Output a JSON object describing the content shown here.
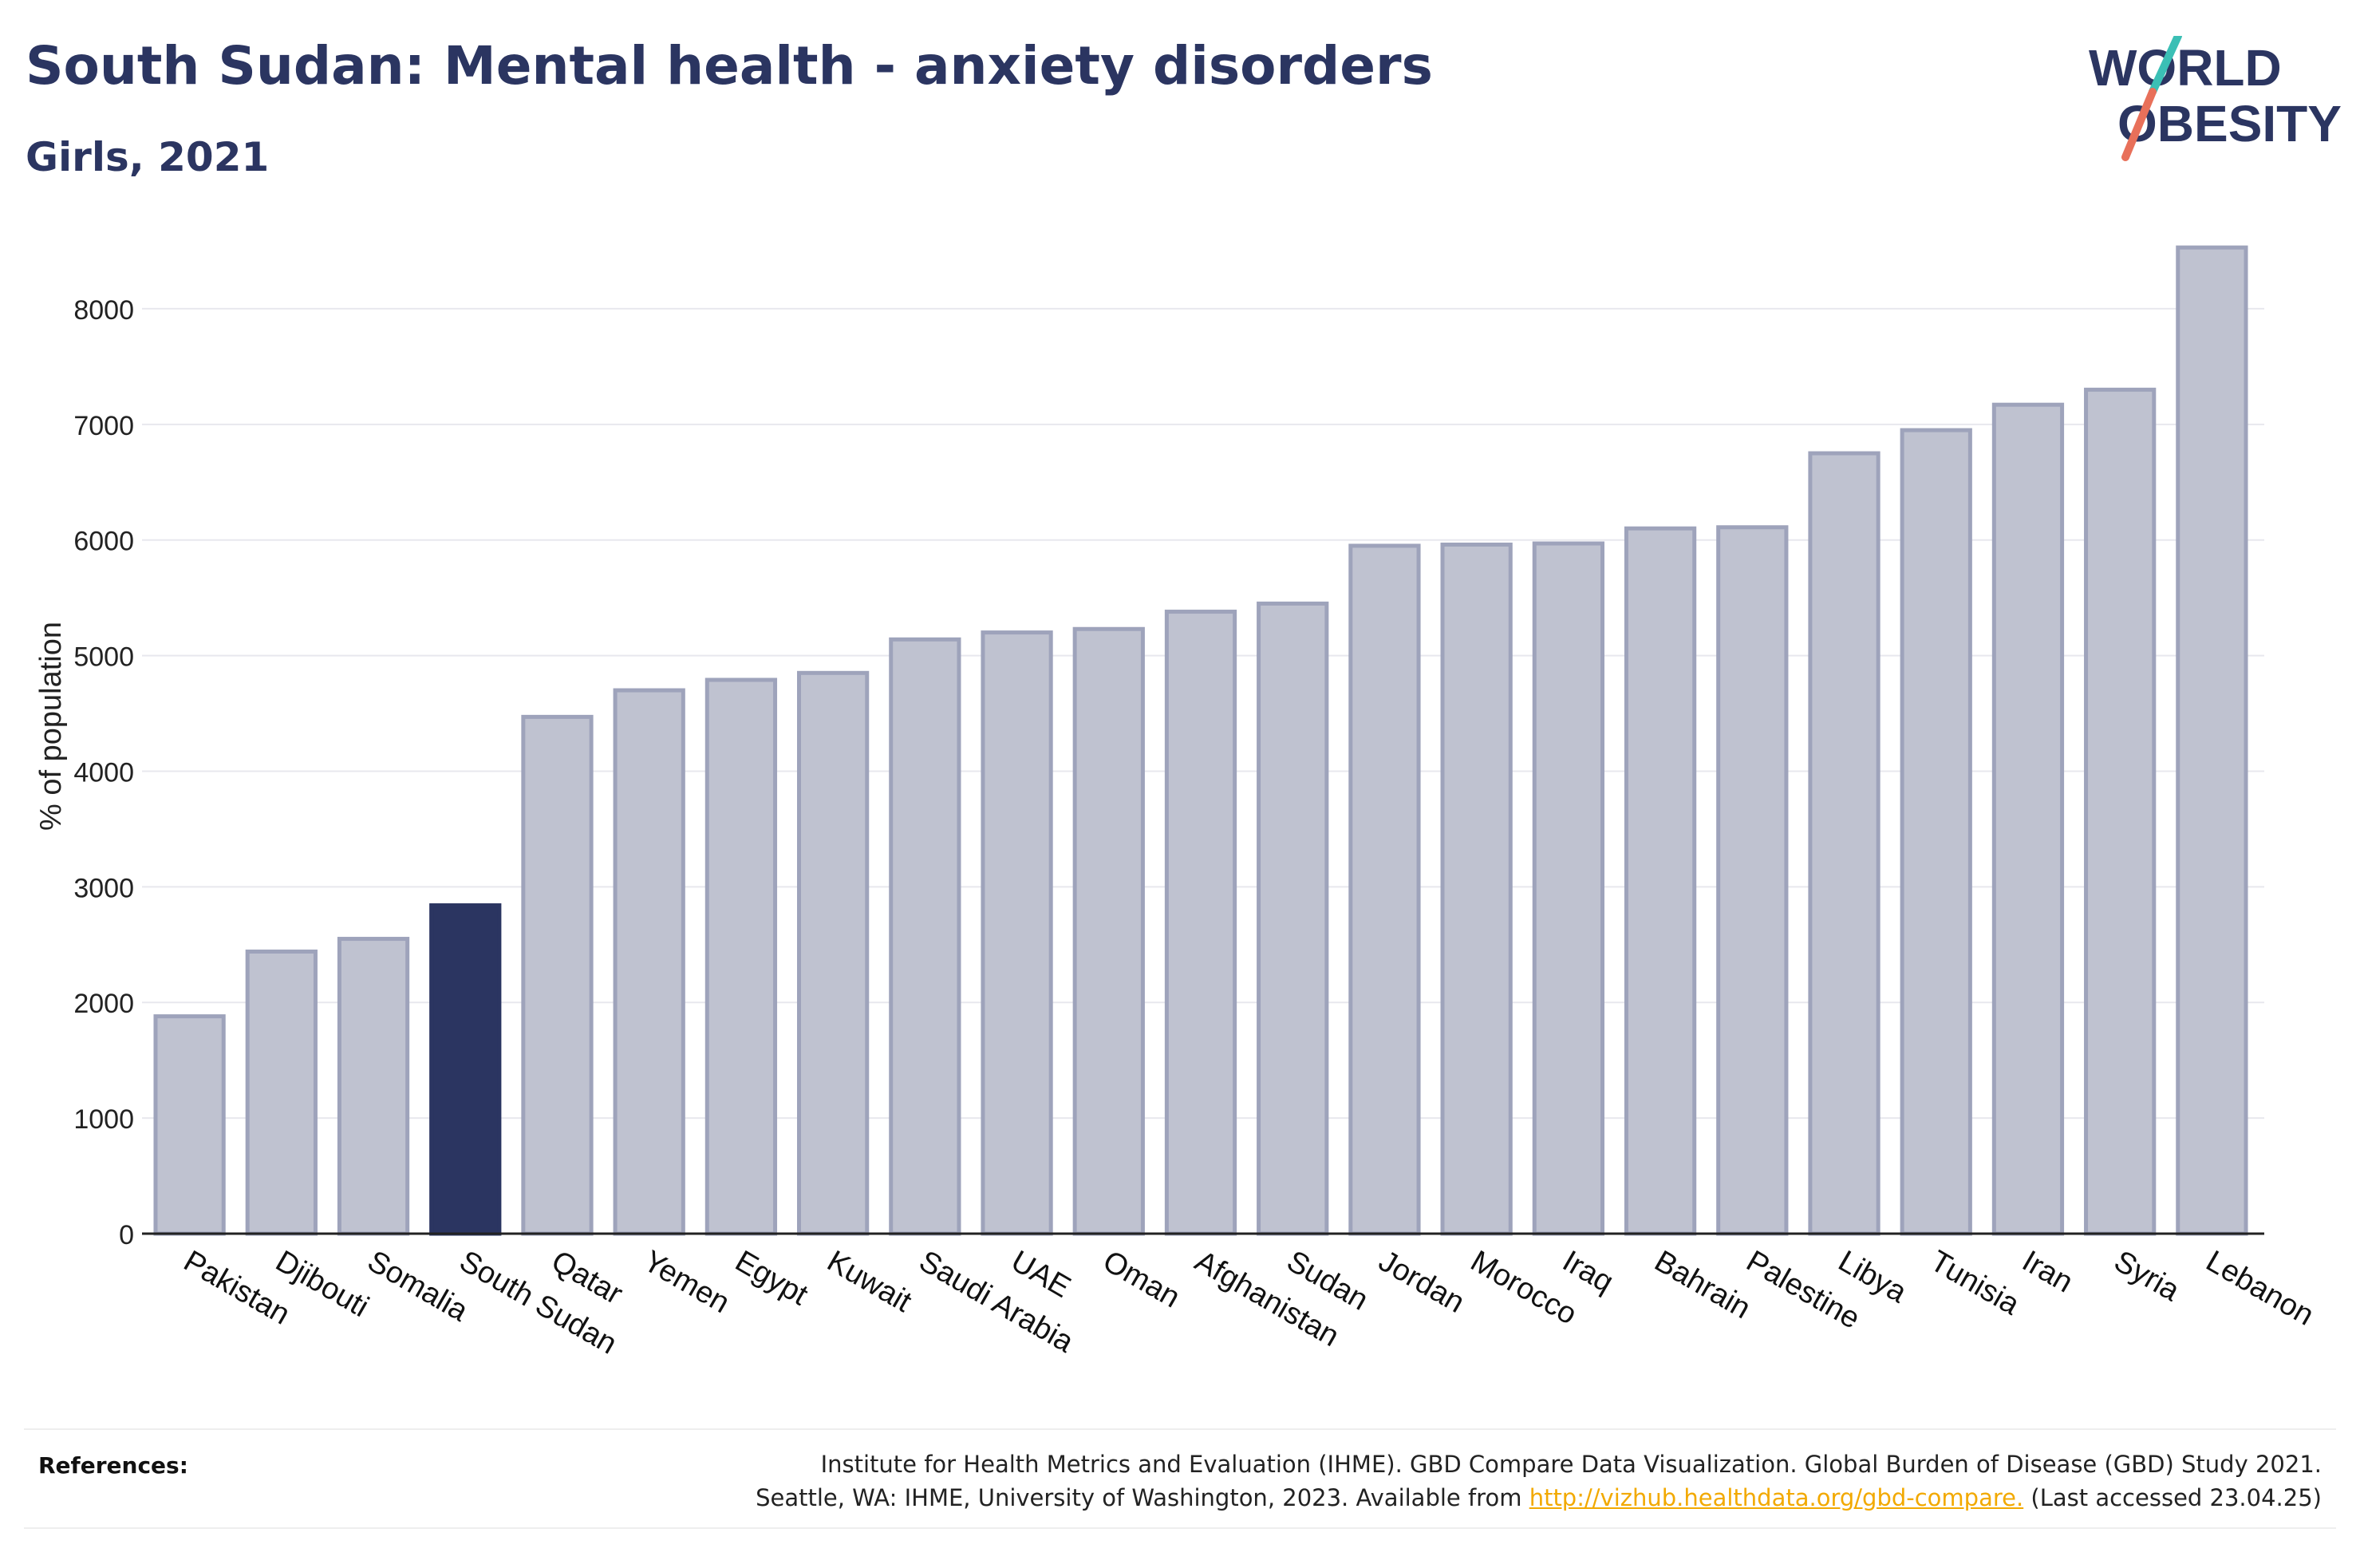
{
  "header": {
    "title": "South Sudan: Mental health - anxiety disorders",
    "subtitle": "Girls, 2021"
  },
  "logo": {
    "line1": "WORLD",
    "line2": "OBESITY"
  },
  "colors": {
    "highlight": "#2b3561",
    "bar_fill": "#bfc2d0",
    "bar_stroke": "#9ea3bb",
    "grid": "#e8e8ee",
    "logo_teal": "#3bbfb5",
    "logo_coral": "#e8705a",
    "link": "#f2a900"
  },
  "chart_data": {
    "type": "bar",
    "ylabel": "% of population",
    "ylim": [
      0,
      8600
    ],
    "yticks": [
      0,
      1000,
      2000,
      3000,
      4000,
      5000,
      6000,
      7000,
      8000
    ],
    "grid": true,
    "highlight": "South Sudan",
    "categories": [
      "Pakistan",
      "Djibouti",
      "Somalia",
      "South Sudan",
      "Qatar",
      "Yemen",
      "Egypt",
      "Kuwait",
      "Saudi Arabia",
      "UAE",
      "Oman",
      "Afghanistan",
      "Sudan",
      "Jordan",
      "Morocco",
      "Iraq",
      "Bahrain",
      "Palestine",
      "Libya",
      "Tunisia",
      "Iran",
      "Syria",
      "Lebanon"
    ],
    "values": [
      1880,
      2440,
      2550,
      2840,
      4470,
      4700,
      4790,
      4850,
      5140,
      5200,
      5230,
      5380,
      5450,
      5950,
      5960,
      5970,
      6100,
      6110,
      6750,
      6950,
      7170,
      7300,
      8530
    ]
  },
  "references": {
    "label": "References:",
    "line1": "Institute for Health Metrics and Evaluation (IHME). GBD Compare Data Visualization. Global Burden of Disease (GBD) Study 2021.",
    "line2_prefix": "Seattle, WA: IHME, University of Washington, 2023. Available from ",
    "link": "http://vizhub.healthdata.org/gbd-compare.",
    "line2_suffix": " (Last accessed 23.04.25)"
  }
}
